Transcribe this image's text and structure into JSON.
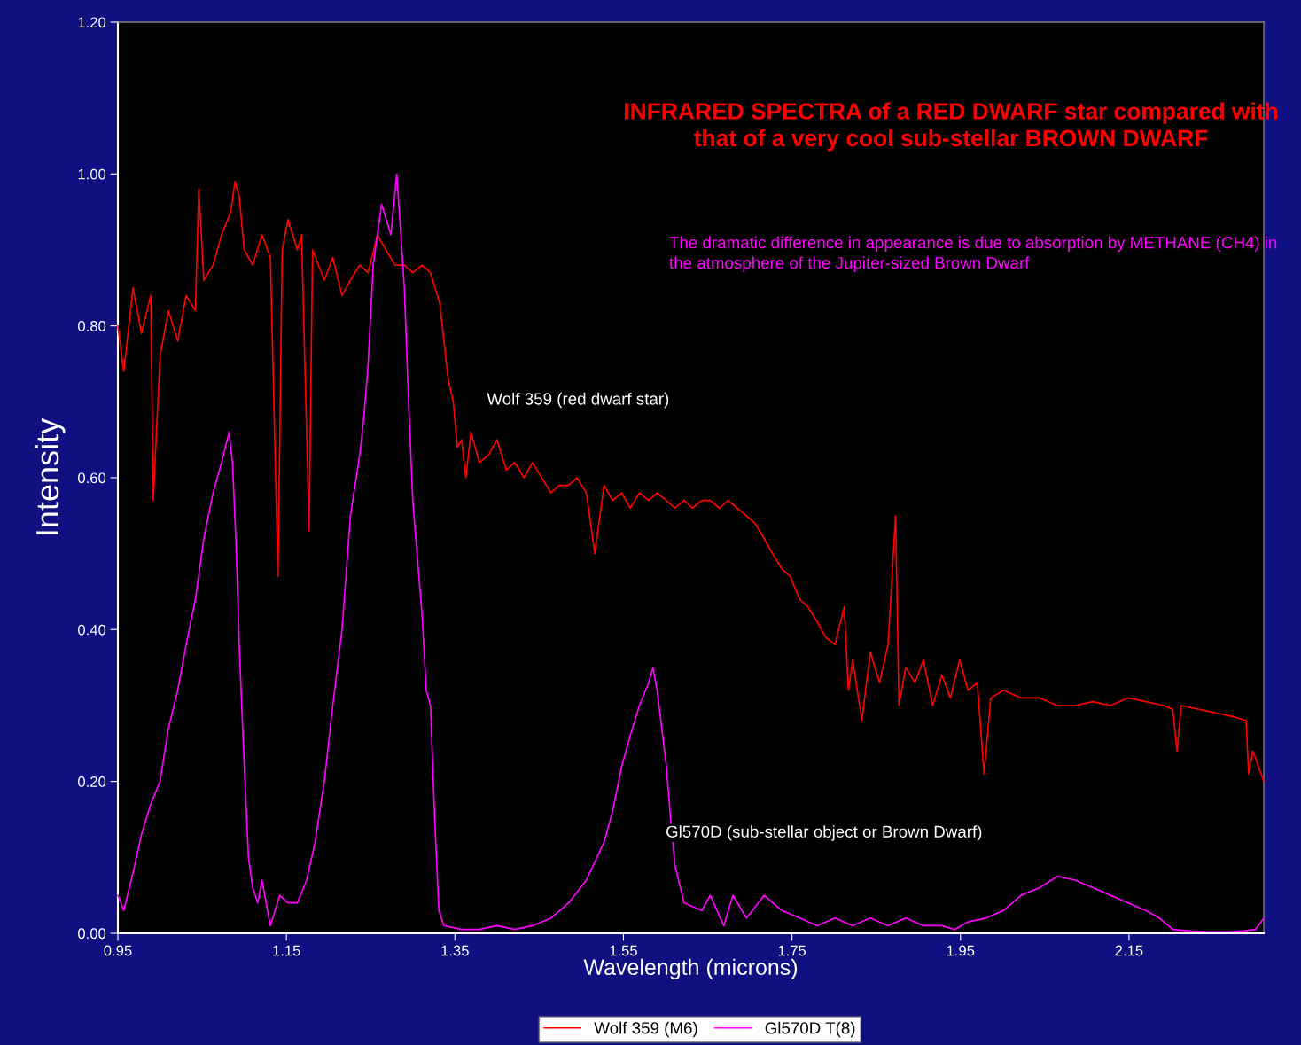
{
  "chart_data": {
    "type": "line",
    "title": "INFRARED SPECTRA of a RED DWARF star compared with that of a very cool sub-stellar BROWN DWARF",
    "subtitle": "The dramatic difference in appearance is due to absorption by METHANE (CH4) in the atmosphere of the Jupiter-sized Brown Dwarf",
    "xlabel": "Wavelength (microns)",
    "ylabel": "Intensity",
    "annotations": [
      "Wolf 359 (red dwarf star)",
      "Gl570D (sub-stellar object or Brown Dwarf)"
    ],
    "series": [
      {
        "name": "Wolf 359 (M6)",
        "color": "#ff0000",
        "x": [
          0.95,
          0.957,
          0.968,
          0.978,
          0.989,
          0.992,
          1.0,
          1.01,
          1.021,
          1.031,
          1.042,
          1.046,
          1.052,
          1.063,
          1.073,
          1.084,
          1.089,
          1.094,
          1.1,
          1.11,
          1.121,
          1.131,
          1.14,
          1.145,
          1.152,
          1.163,
          1.168,
          1.177,
          1.181,
          1.195,
          1.205,
          1.216,
          1.226,
          1.237,
          1.247,
          1.258,
          1.268,
          1.279,
          1.29,
          1.3,
          1.311,
          1.321,
          1.332,
          1.337,
          1.342,
          1.348,
          1.353,
          1.358,
          1.363,
          1.369,
          1.379,
          1.39,
          1.4,
          1.411,
          1.421,
          1.432,
          1.442,
          1.453,
          1.464,
          1.474,
          1.485,
          1.495,
          1.506,
          1.516,
          1.527,
          1.537,
          1.548,
          1.558,
          1.569,
          1.58,
          1.59,
          1.601,
          1.611,
          1.622,
          1.632,
          1.643,
          1.653,
          1.664,
          1.674,
          1.685,
          1.696,
          1.706,
          1.717,
          1.727,
          1.738,
          1.748,
          1.759,
          1.769,
          1.78,
          1.79,
          1.801,
          1.812,
          1.817,
          1.822,
          1.833,
          1.843,
          1.854,
          1.864,
          1.873,
          1.877,
          1.885,
          1.896,
          1.906,
          1.917,
          1.928,
          1.938,
          1.949,
          1.959,
          1.97,
          1.978,
          1.986,
          2.001,
          2.022,
          2.044,
          2.065,
          2.086,
          2.107,
          2.128,
          2.149,
          2.17,
          2.191,
          2.202,
          2.207,
          2.212,
          2.233,
          2.254,
          2.275,
          2.289,
          2.292,
          2.297,
          2.31
        ],
        "values": [
          0.8,
          0.74,
          0.85,
          0.79,
          0.84,
          0.57,
          0.76,
          0.82,
          0.78,
          0.84,
          0.82,
          0.98,
          0.86,
          0.88,
          0.92,
          0.95,
          0.99,
          0.97,
          0.9,
          0.88,
          0.92,
          0.89,
          0.47,
          0.9,
          0.94,
          0.9,
          0.92,
          0.53,
          0.9,
          0.86,
          0.89,
          0.84,
          0.86,
          0.88,
          0.87,
          0.92,
          0.9,
          0.88,
          0.88,
          0.87,
          0.88,
          0.87,
          0.83,
          0.78,
          0.73,
          0.7,
          0.64,
          0.65,
          0.6,
          0.66,
          0.62,
          0.63,
          0.65,
          0.61,
          0.62,
          0.6,
          0.62,
          0.6,
          0.58,
          0.59,
          0.59,
          0.6,
          0.58,
          0.5,
          0.59,
          0.57,
          0.58,
          0.56,
          0.58,
          0.57,
          0.58,
          0.57,
          0.56,
          0.57,
          0.56,
          0.57,
          0.57,
          0.56,
          0.57,
          0.56,
          0.55,
          0.54,
          0.52,
          0.5,
          0.48,
          0.47,
          0.44,
          0.43,
          0.41,
          0.39,
          0.38,
          0.43,
          0.32,
          0.36,
          0.28,
          0.37,
          0.33,
          0.38,
          0.55,
          0.3,
          0.35,
          0.33,
          0.36,
          0.3,
          0.34,
          0.31,
          0.36,
          0.32,
          0.33,
          0.21,
          0.31,
          0.32,
          0.31,
          0.31,
          0.3,
          0.3,
          0.305,
          0.3,
          0.31,
          0.305,
          0.3,
          0.295,
          0.24,
          0.3,
          0.295,
          0.29,
          0.285,
          0.28,
          0.21,
          0.24,
          0.2
        ]
      },
      {
        "name": "Gl570D T(8)",
        "color": "#ff00ff",
        "x": [
          0.95,
          0.957,
          0.968,
          0.978,
          0.989,
          1.0,
          1.01,
          1.021,
          1.031,
          1.042,
          1.052,
          1.063,
          1.073,
          1.082,
          1.086,
          1.09,
          1.094,
          1.1,
          1.105,
          1.11,
          1.116,
          1.121,
          1.131,
          1.142,
          1.152,
          1.163,
          1.174,
          1.184,
          1.195,
          1.205,
          1.216,
          1.226,
          1.237,
          1.242,
          1.247,
          1.253,
          1.263,
          1.274,
          1.281,
          1.29,
          1.295,
          1.3,
          1.305,
          1.311,
          1.316,
          1.321,
          1.326,
          1.331,
          1.337,
          1.358,
          1.379,
          1.4,
          1.421,
          1.442,
          1.464,
          1.485,
          1.506,
          1.527,
          1.537,
          1.548,
          1.558,
          1.569,
          1.58,
          1.585,
          1.59,
          1.601,
          1.606,
          1.611,
          1.622,
          1.643,
          1.653,
          1.669,
          1.68,
          1.696,
          1.717,
          1.738,
          1.759,
          1.78,
          1.801,
          1.822,
          1.843,
          1.864,
          1.885,
          1.906,
          1.928,
          1.943,
          1.959,
          1.98,
          2.001,
          2.022,
          2.044,
          2.065,
          2.086,
          2.107,
          2.128,
          2.149,
          2.17,
          2.186,
          2.202,
          2.223,
          2.244,
          2.265,
          2.286,
          2.3,
          2.31
        ],
        "values": [
          0.05,
          0.03,
          0.08,
          0.13,
          0.17,
          0.2,
          0.27,
          0.32,
          0.38,
          0.44,
          0.52,
          0.58,
          0.62,
          0.66,
          0.62,
          0.52,
          0.38,
          0.22,
          0.1,
          0.06,
          0.04,
          0.07,
          0.01,
          0.05,
          0.04,
          0.04,
          0.07,
          0.12,
          0.2,
          0.3,
          0.4,
          0.55,
          0.63,
          0.68,
          0.75,
          0.88,
          0.96,
          0.92,
          1.0,
          0.85,
          0.7,
          0.57,
          0.5,
          0.42,
          0.32,
          0.3,
          0.15,
          0.03,
          0.01,
          0.005,
          0.005,
          0.01,
          0.005,
          0.01,
          0.02,
          0.04,
          0.07,
          0.12,
          0.16,
          0.22,
          0.26,
          0.3,
          0.33,
          0.35,
          0.32,
          0.22,
          0.15,
          0.09,
          0.04,
          0.03,
          0.05,
          0.01,
          0.05,
          0.02,
          0.05,
          0.03,
          0.02,
          0.01,
          0.02,
          0.01,
          0.02,
          0.01,
          0.02,
          0.01,
          0.01,
          0.005,
          0.015,
          0.02,
          0.03,
          0.05,
          0.06,
          0.075,
          0.07,
          0.06,
          0.05,
          0.04,
          0.03,
          0.02,
          0.005,
          0.003,
          0.002,
          0.002,
          0.003,
          0.005,
          0.02
        ]
      }
    ],
    "xlim": [
      0.95,
      2.31
    ],
    "xticks": [
      0.95,
      1.15,
      1.35,
      1.55,
      1.75,
      1.95,
      2.15
    ],
    "ylim": [
      0,
      1.2
    ],
    "yticks": [
      {
        "value": 0,
        "label": "0.00"
      },
      {
        "value": 0.2,
        "label": "0.20"
      },
      {
        "value": 0.4,
        "label": "0.40"
      },
      {
        "value": 0.6,
        "label": "0.60"
      },
      {
        "value": 0.8,
        "label": "0.80"
      },
      {
        "value": 1.0,
        "label": "1.00"
      },
      {
        "value": 1.2,
        "label": "1.20"
      }
    ],
    "grid": false,
    "legend": "bottom",
    "marker": "none",
    "line_style": "solid"
  }
}
